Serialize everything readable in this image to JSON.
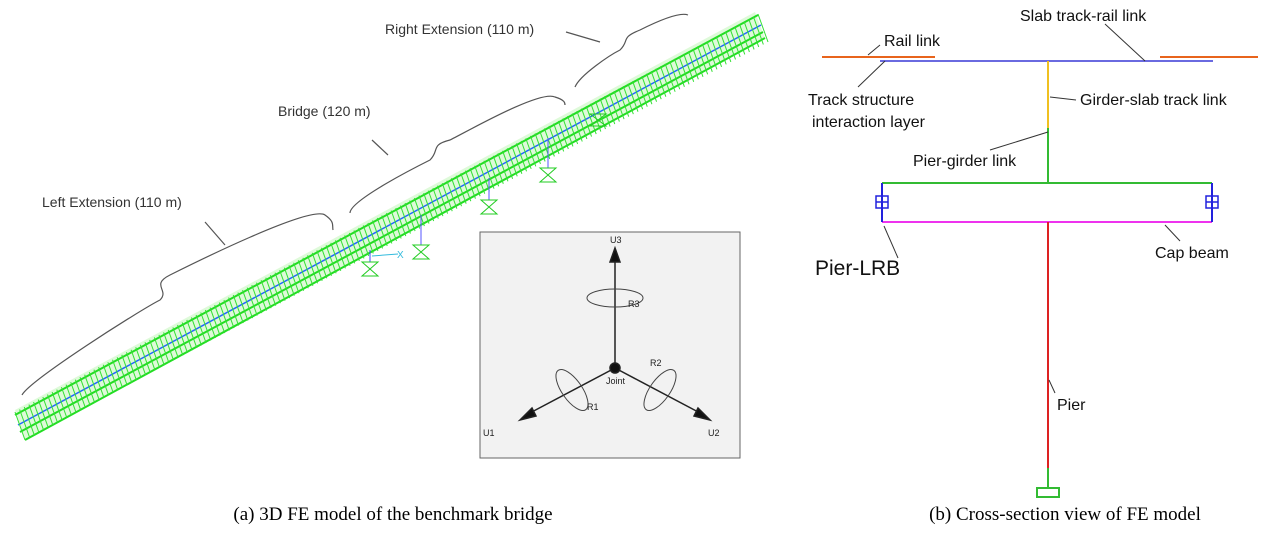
{
  "panel_a": {
    "labels": {
      "right_extension": "Right Extension (110 m)",
      "bridge": "Bridge (120 m)",
      "left_extension": "Left Extension (110 m)",
      "axis_x": "X"
    },
    "inset": {
      "u3": "U3",
      "u1": "U1",
      "u2": "U2",
      "r1": "R1",
      "r2": "R2",
      "r3": "R3",
      "joint": "Joint"
    },
    "caption": "(a)  3D FE model of the benchmark bridge"
  },
  "panel_b": {
    "labels": {
      "slab_track_rail_link": "Slab track-rail link",
      "rail_link": "Rail link",
      "track_structure": [
        "Track structure",
        "interaction layer"
      ],
      "girder_slab_track_link": "Girder-slab track link",
      "pier_girder_link": "Pier-girder link",
      "pier_lrb": "Pier-LRB",
      "cap_beam": "Cap beam",
      "pier": "Pier"
    },
    "caption": "(b) Cross-section view of FE model"
  }
}
